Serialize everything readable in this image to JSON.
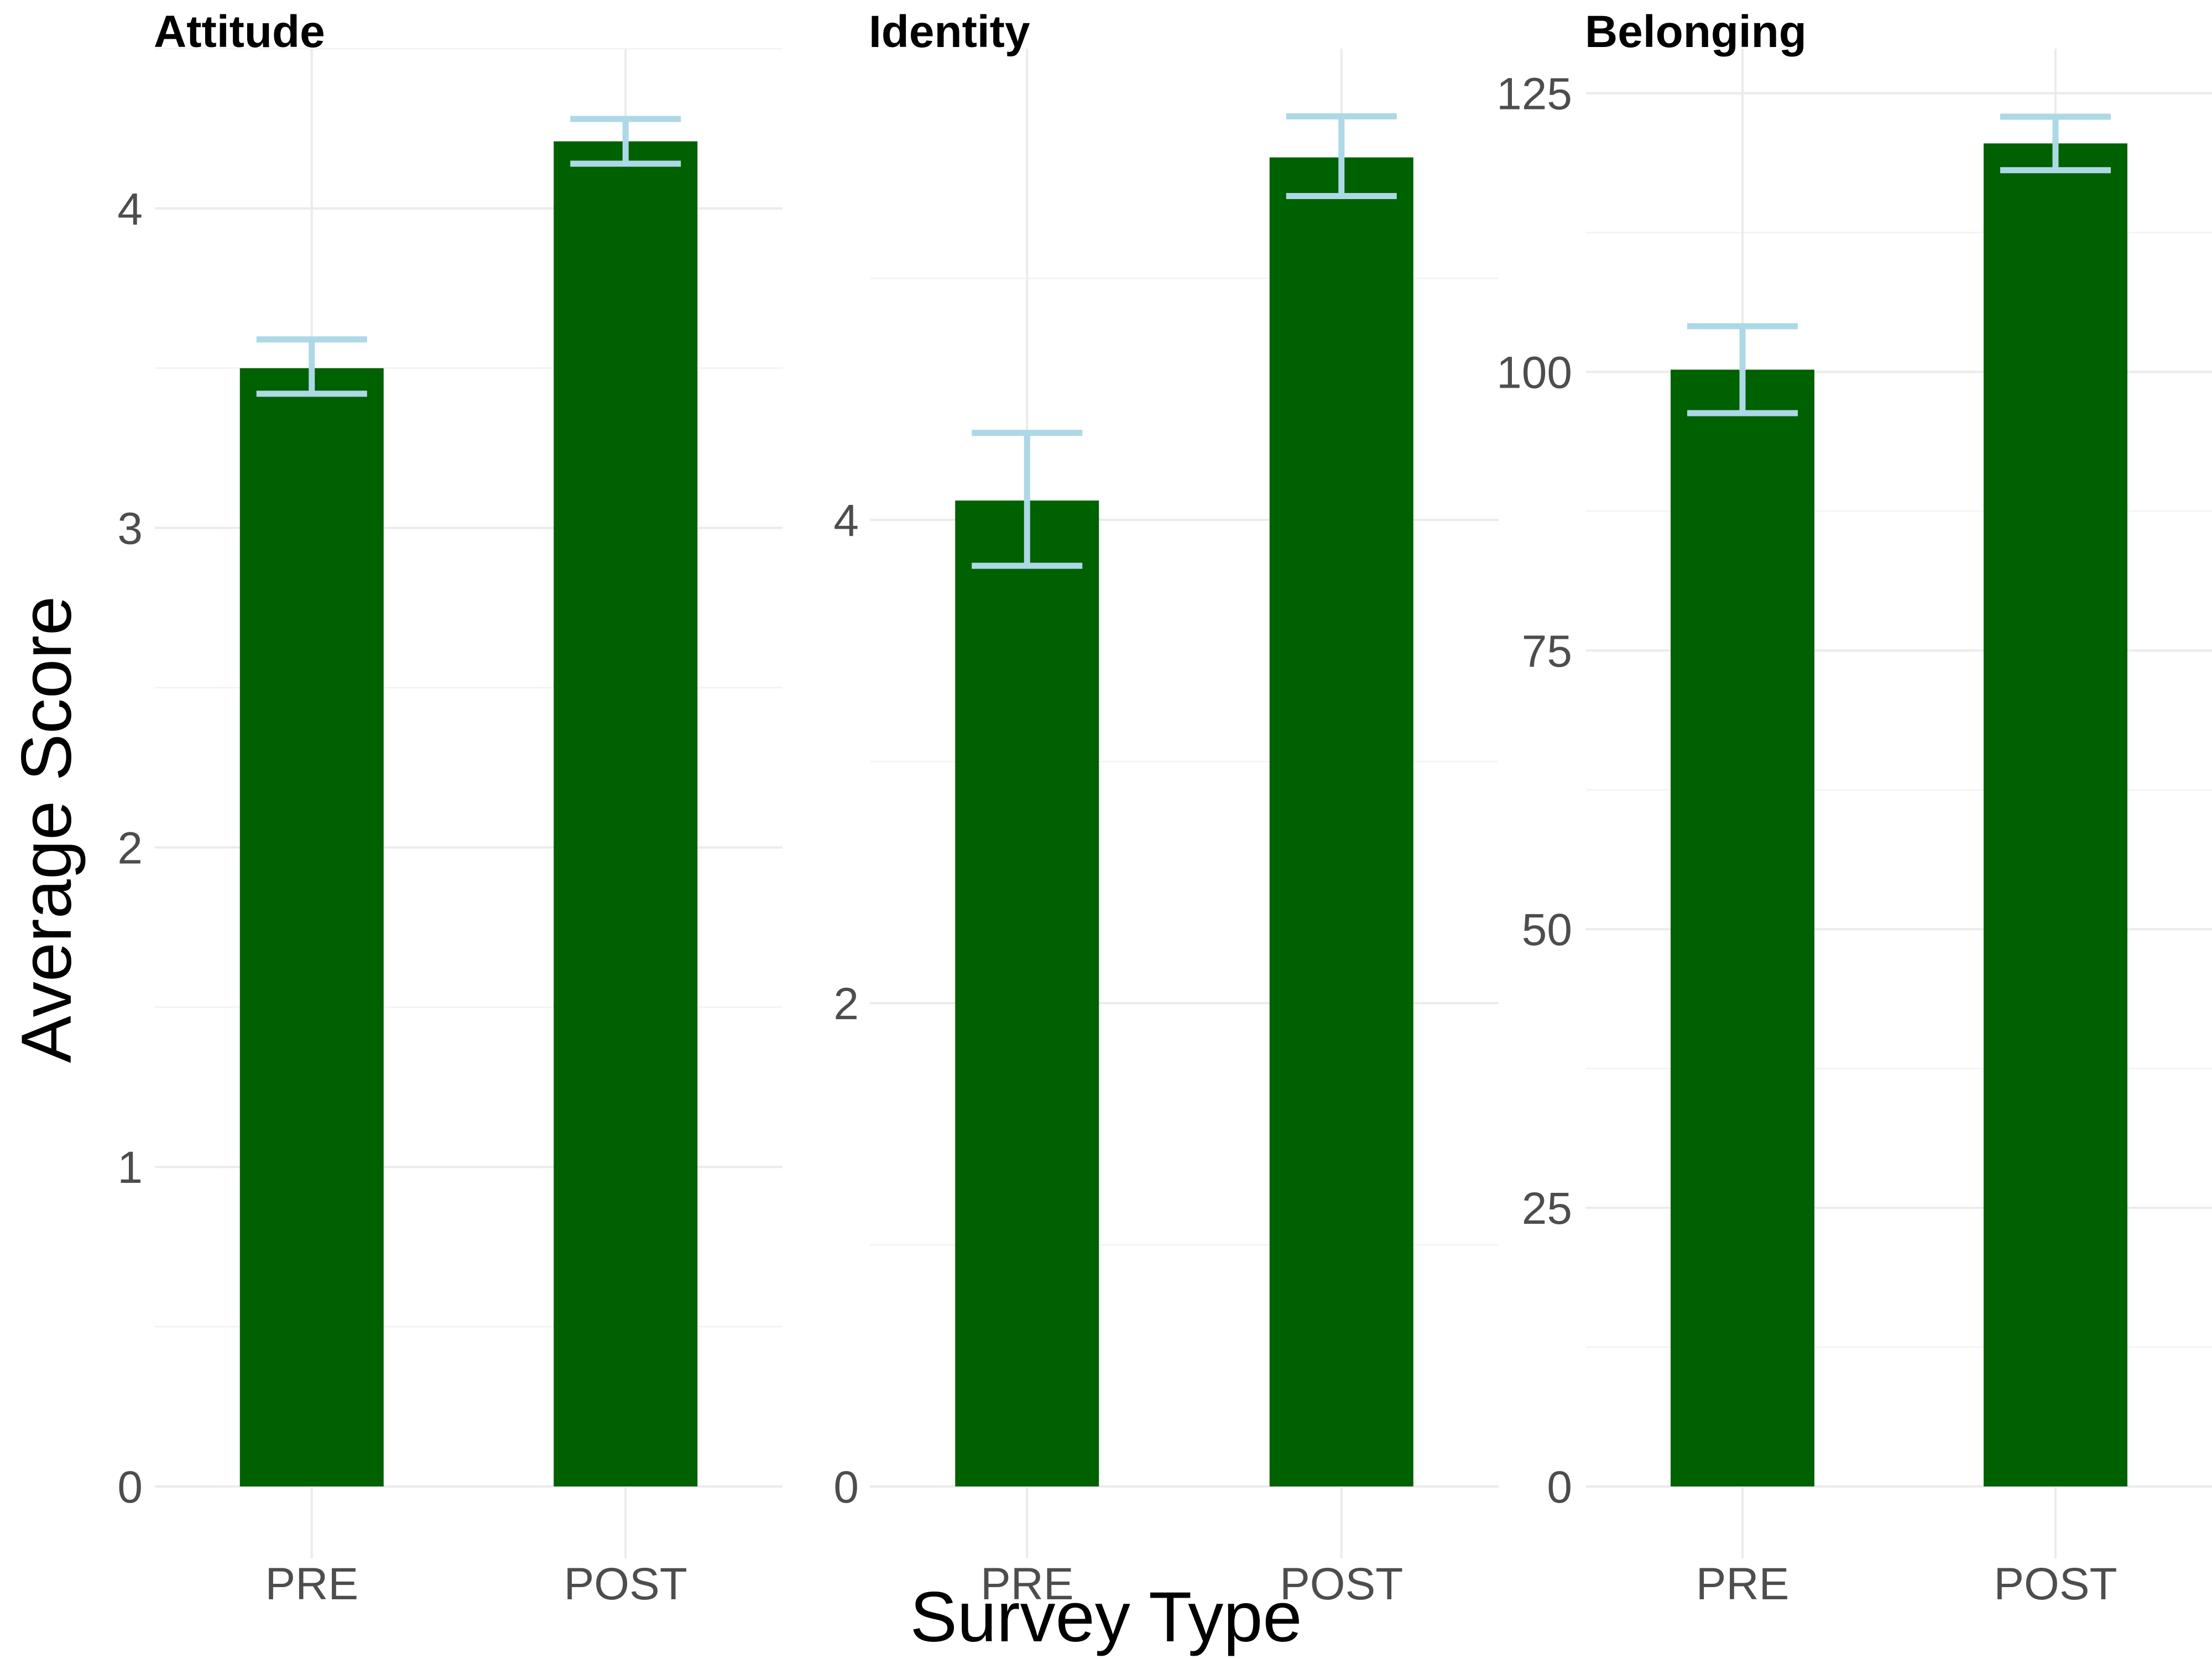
{
  "chart_data": {
    "type": "bar",
    "xlabel": "Survey Type",
    "ylabel": "Average Score",
    "categories": [
      "PRE",
      "POST"
    ],
    "colors": {
      "bar": "#006100",
      "errorbar": "#add8e6"
    },
    "grid": true,
    "panels": [
      {
        "title": "Attitude",
        "values": [
          3.5,
          4.21
        ],
        "error_low": [
          3.42,
          4.14
        ],
        "error_high": [
          3.59,
          4.28
        ],
        "ylim": [
          0,
          4.5
        ],
        "yticks": [
          0,
          1,
          2,
          3,
          4
        ],
        "yticklabels": [
          "0",
          "1",
          "2",
          "3",
          "4"
        ]
      },
      {
        "title": "Identity",
        "values": [
          4.08,
          5.5
        ],
        "error_low": [
          3.81,
          5.34
        ],
        "error_high": [
          4.36,
          5.67
        ],
        "ylim": [
          0,
          5.95
        ],
        "yticks": [
          0,
          2,
          4
        ],
        "yticklabels": [
          "0",
          "2",
          "4"
        ]
      },
      {
        "title": "Belonging",
        "values": [
          100.2,
          120.5
        ],
        "error_low": [
          96.3,
          118.1
        ],
        "error_high": [
          104.1,
          122.9
        ],
        "ylim": [
          0,
          129
        ],
        "yticks": [
          0,
          25,
          50,
          75,
          100,
          125
        ],
        "yticklabels": [
          "0",
          "25",
          "50",
          "75",
          "100",
          "125"
        ]
      }
    ]
  }
}
